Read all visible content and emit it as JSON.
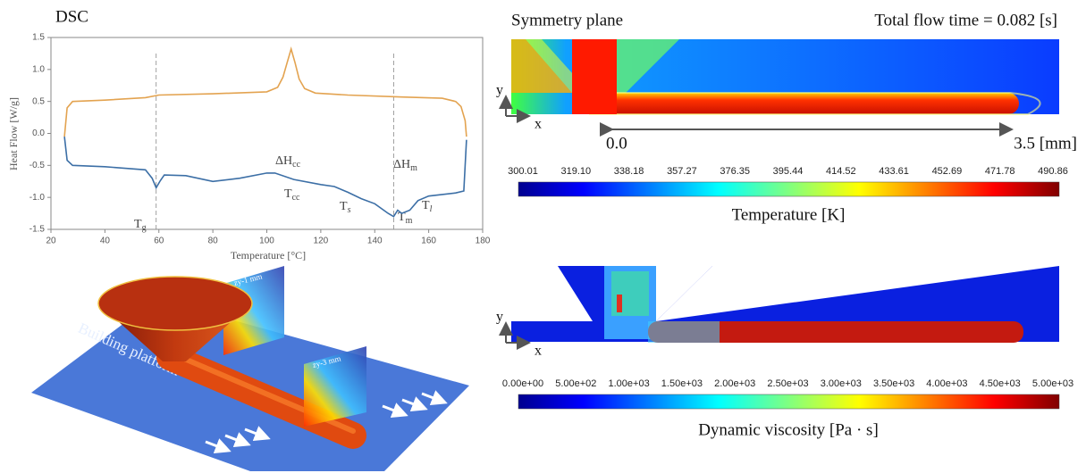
{
  "chart_data": {
    "type": "line",
    "title": "DSC",
    "x_label": "Temperature [°C]",
    "y_label": "Heat Flow [W/g]",
    "xlim": [
      20,
      180
    ],
    "ylim": [
      -1.5,
      1.5
    ],
    "xticks": [
      20,
      40,
      60,
      80,
      100,
      120,
      140,
      160,
      180
    ],
    "yticks": [
      -1.5,
      {
        "value": -1,
        "label": "-1.0"
      },
      -0.5,
      {
        "value": 0,
        "label": "0.0"
      },
      0.5,
      {
        "value": 1,
        "label": "1.0"
      },
      1.5
    ],
    "reference_lines": [
      59,
      147
    ],
    "series": [
      {
        "color": "#e3a350",
        "x": [
          25,
          26,
          28,
          40,
          55,
          60,
          80,
          100,
          104,
          106,
          107.5,
          109,
          110.5,
          112,
          114,
          118,
          130,
          150,
          165,
          170,
          172,
          173.5,
          174
        ],
        "values": [
          -0.05,
          0.4,
          0.5,
          0.52,
          0.56,
          0.6,
          0.62,
          0.65,
          0.72,
          0.88,
          1.1,
          1.32,
          1.1,
          0.85,
          0.7,
          0.63,
          0.6,
          0.57,
          0.55,
          0.5,
          0.42,
          0.2,
          -0.05
        ]
      },
      {
        "color": "#3c6fa6",
        "x": [
          25,
          26,
          28,
          40,
          55,
          57.5,
          59,
          60.5,
          62,
          70,
          80,
          90,
          100,
          103,
          110,
          120,
          125,
          130,
          135,
          140,
          145,
          147,
          148.5,
          150,
          153,
          156,
          160,
          170,
          173,
          174
        ],
        "values": [
          -0.05,
          -0.42,
          -0.5,
          -0.52,
          -0.57,
          -0.7,
          -0.85,
          -0.74,
          -0.65,
          -0.66,
          -0.75,
          -0.7,
          -0.62,
          -0.62,
          -0.72,
          -0.8,
          -0.83,
          -0.92,
          -1.02,
          -1.1,
          -1.25,
          -1.3,
          -1.2,
          -1.25,
          -1.2,
          -1.05,
          -0.98,
          -0.93,
          -0.9,
          -0.1
        ]
      }
    ],
    "annotations": [
      {
        "text": "T",
        "sub": "g"
      },
      {
        "text": "ΔH",
        "sub": "cc"
      },
      {
        "text": "T",
        "sub": "cc"
      },
      {
        "text": "T",
        "sub": "s"
      },
      {
        "text": "ΔH",
        "sub": "m"
      },
      {
        "text": "T",
        "sub": "m"
      },
      {
        "text": "T",
        "sub": "l"
      }
    ]
  },
  "render_3d": {
    "platform_label": "Building platform",
    "slice_1": "zy-1 mm",
    "slice_2": "zy-3 mm"
  },
  "temperature_plot": {
    "title": "Symmetry plane",
    "flow_time": "Total flow time = 0.082 [s]",
    "axis_y": "y",
    "axis_x": "x",
    "scale_start": "0.0",
    "scale_end": "3.5 [mm]",
    "colorbar_ticks": [
      "300.01",
      "319.10",
      "338.18",
      "357.27",
      "376.35",
      "395.44",
      "414.52",
      "433.61",
      "452.69",
      "471.78",
      "490.86"
    ],
    "colorbar_label": "Temperature [K]"
  },
  "viscosity_plot": {
    "axis_y": "y",
    "axis_x": "x",
    "colorbar_ticks": [
      "0.00e+00",
      "5.00e+02",
      "1.00e+03",
      "1.50e+03",
      "2.00e+03",
      "2.50e+03",
      "3.00e+03",
      "3.50e+03",
      "4.00e+03",
      "4.50e+03",
      "5.00e+03"
    ],
    "colorbar_label": "Dynamic viscosity [Pa · s]"
  }
}
